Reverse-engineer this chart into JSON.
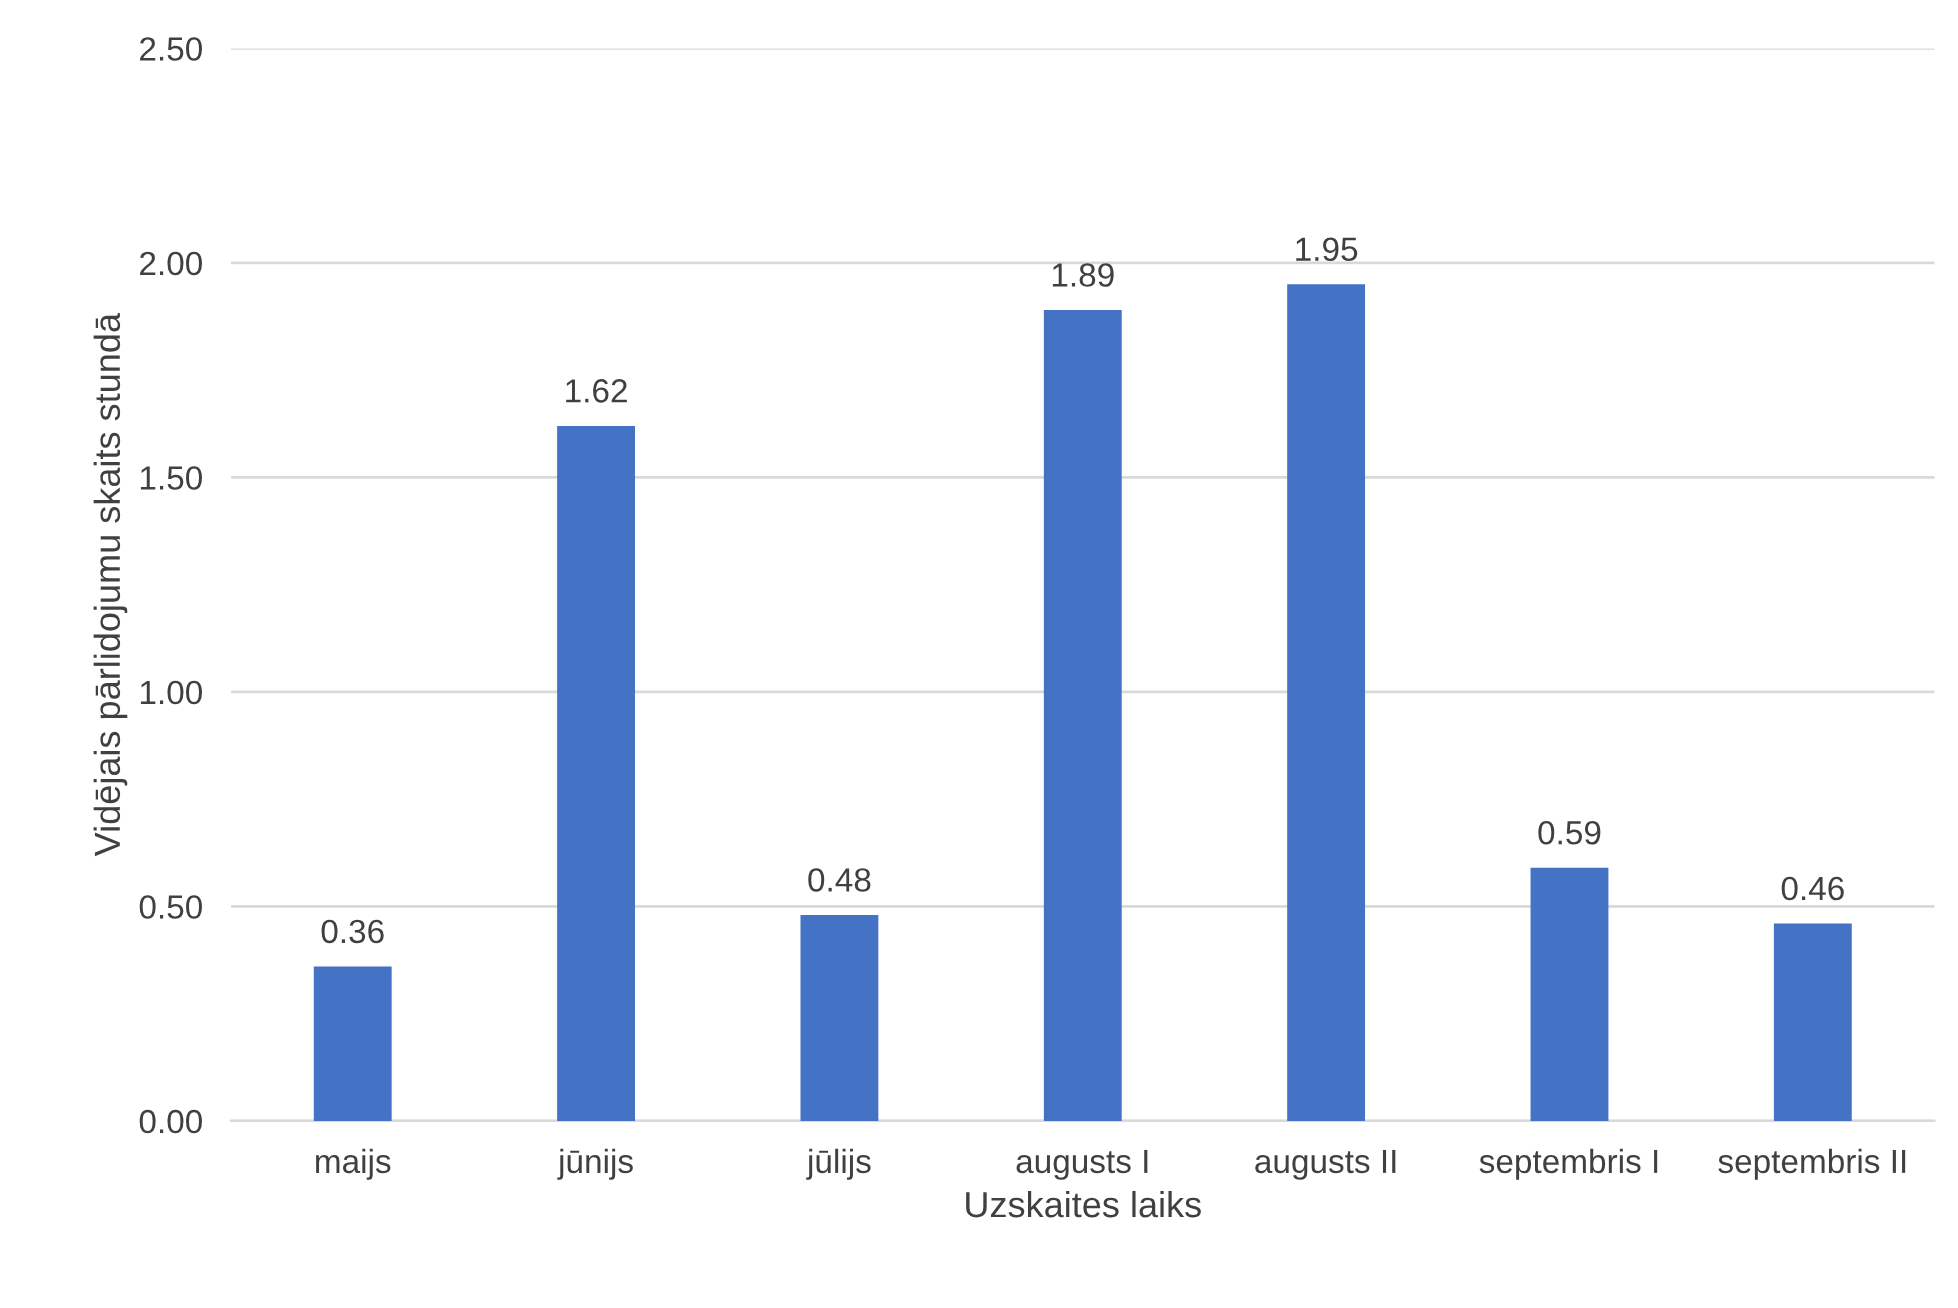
{
  "chart_data": {
    "type": "bar",
    "xlabel": "Uzskaites laiks",
    "ylabel": "Vidējais pārlidojumu skaits stundā",
    "categories": [
      "maijs",
      "jūnijs",
      "jūlijs",
      "augusts I",
      "augusts II",
      "septembris I",
      "septembris II"
    ],
    "values": [
      0.36,
      1.62,
      0.48,
      1.89,
      1.95,
      0.59,
      0.46
    ],
    "color": "#4472c4",
    "ylim": [
      0,
      2.5
    ],
    "yticks": [
      {
        "value": 0,
        "label": "0.00"
      },
      {
        "value": 0.5,
        "label": "0.50"
      },
      {
        "value": 1,
        "label": "1.00"
      },
      {
        "value": 1.5,
        "label": "1.50"
      },
      {
        "value": 2,
        "label": "2.00"
      },
      {
        "value": 2.5,
        "label": "2.50"
      }
    ],
    "grid": "y",
    "data_labels": true
  }
}
